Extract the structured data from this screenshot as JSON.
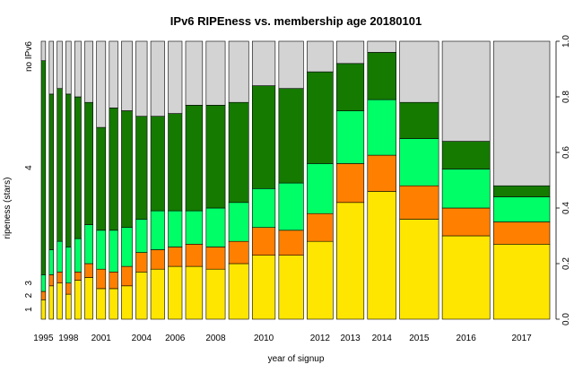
{
  "chart_data": {
    "type": "bar",
    "stacked": true,
    "variable_width": true,
    "title": "IPv6 RIPEness vs. membership age 20180101",
    "xlabel": "year of signup",
    "ylabel": "ripeness (stars)",
    "ylim": [
      0,
      1
    ],
    "right_ticks": [
      "0.0",
      "0.2",
      "0.4",
      "0.6",
      "0.8",
      "1.0"
    ],
    "left_ticks": [
      "1",
      "2",
      "3",
      "4",
      "no IPv6"
    ],
    "categories": [
      "1995",
      "1996",
      "1997",
      "1998",
      "1999",
      "2000",
      "2001",
      "2002",
      "2003",
      "2004",
      "2005",
      "2006",
      "2007",
      "2008",
      "2009",
      "2010",
      "2011",
      "2012",
      "2013",
      "2014",
      "2015",
      "2016",
      "2017"
    ],
    "x_tick_labels": [
      "1995",
      "1998",
      "2001",
      "2004",
      "2006",
      "2008",
      "2010",
      "2012",
      "2013",
      "2014",
      "2015",
      "2016",
      "2017"
    ],
    "bar_widths": [
      1,
      1,
      1.2,
      1.2,
      1.5,
      1.9,
      2.1,
      2.0,
      2.5,
      2.6,
      3.2,
      3.2,
      3.9,
      4.4,
      4.6,
      5.3,
      5.7,
      6.0,
      6.3,
      6.6,
      9.0,
      11.0,
      13.0
    ],
    "series": [
      {
        "name": "1",
        "color": "#ffe600",
        "values": [
          0.07,
          0.12,
          0.13,
          0.09,
          0.14,
          0.15,
          0.11,
          0.11,
          0.12,
          0.17,
          0.18,
          0.19,
          0.19,
          0.18,
          0.2,
          0.23,
          0.23,
          0.28,
          0.42,
          0.46,
          0.36,
          0.3,
          0.27
        ]
      },
      {
        "name": "2",
        "color": "#ff8000",
        "values": [
          0.03,
          0.04,
          0.04,
          0.04,
          0.03,
          0.05,
          0.07,
          0.06,
          0.07,
          0.07,
          0.07,
          0.07,
          0.08,
          0.08,
          0.08,
          0.1,
          0.09,
          0.1,
          0.14,
          0.13,
          0.12,
          0.1,
          0.08
        ]
      },
      {
        "name": "3",
        "color": "#00ff66",
        "values": [
          0.06,
          0.09,
          0.11,
          0.13,
          0.12,
          0.14,
          0.14,
          0.15,
          0.14,
          0.12,
          0.14,
          0.13,
          0.12,
          0.14,
          0.14,
          0.14,
          0.17,
          0.18,
          0.19,
          0.2,
          0.17,
          0.14,
          0.09
        ]
      },
      {
        "name": "4",
        "color": "#157a00",
        "values": [
          0.77,
          0.56,
          0.55,
          0.55,
          0.51,
          0.44,
          0.37,
          0.44,
          0.42,
          0.37,
          0.34,
          0.35,
          0.38,
          0.37,
          0.36,
          0.37,
          0.34,
          0.33,
          0.17,
          0.17,
          0.13,
          0.1,
          0.04
        ]
      },
      {
        "name": "no IPv6",
        "color": "#d3d3d3",
        "values": [
          0.07,
          0.19,
          0.17,
          0.19,
          0.2,
          0.22,
          0.31,
          0.24,
          0.25,
          0.27,
          0.27,
          0.26,
          0.23,
          0.23,
          0.22,
          0.16,
          0.17,
          0.11,
          0.08,
          0.04,
          0.22,
          0.36,
          0.52
        ]
      }
    ]
  }
}
